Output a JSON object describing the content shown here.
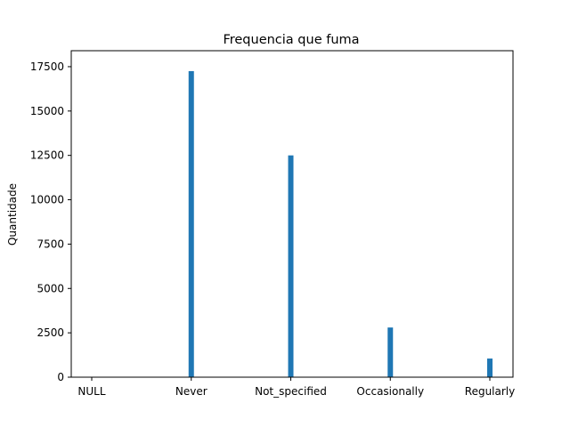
{
  "chart_data": {
    "type": "bar",
    "title": "Frequencia que fuma",
    "xlabel": "",
    "ylabel": "Quantidade",
    "categories": [
      "NULL",
      "Never",
      "Not_specified",
      "Occasionally",
      "Regularly"
    ],
    "values": [
      0,
      17250,
      12500,
      2800,
      1050
    ],
    "ylim": [
      0,
      18400
    ],
    "yticks": [
      0,
      2500,
      5000,
      7500,
      10000,
      12500,
      15000,
      17500
    ],
    "grid": false,
    "bar_color": "#1f77b4"
  }
}
